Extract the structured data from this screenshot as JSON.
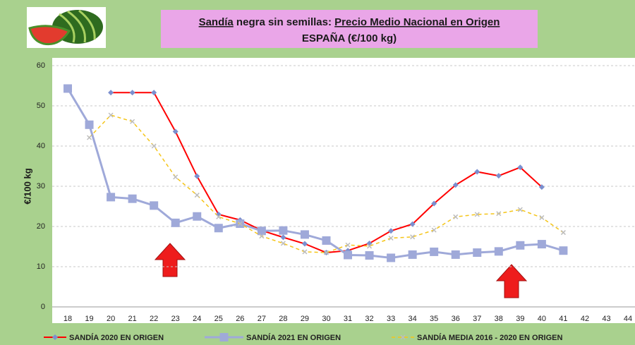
{
  "chart_data": {
    "type": "line",
    "title_parts": [
      "Sandía",
      " negra sin semillas: ",
      "Precio Medio Nacional en Origen"
    ],
    "subtitle": "ESPAÑA (€/100 kg)",
    "y_label": "€/100 kg",
    "categories": [
      "18",
      "19",
      "20",
      "21",
      "22",
      "23",
      "24",
      "25",
      "26",
      "27",
      "28",
      "29",
      "30",
      "31",
      "32",
      "33",
      "34",
      "35",
      "36",
      "37",
      "38",
      "39",
      "40",
      "41",
      "42",
      "43",
      "44"
    ],
    "series": [
      {
        "name": "SANDÍA 2020 EN ORIGEN",
        "color": "#ff0000",
        "marker": "diamond",
        "values": [
          null,
          null,
          53.3,
          53.3,
          53.3,
          43.6,
          32.5,
          23.0,
          21.6,
          19.0,
          17.3,
          15.7,
          13.5,
          14.0,
          15.8,
          18.9,
          20.6,
          25.7,
          30.3,
          33.6,
          32.6,
          34.7,
          29.8,
          null,
          null,
          null,
          null
        ]
      },
      {
        "name": "SANDÍA 2021 EN ORIGEN",
        "color": "#9fa9d9",
        "marker": "square",
        "values": [
          54.3,
          45.3,
          27.3,
          26.9,
          25.2,
          20.9,
          22.5,
          19.6,
          20.7,
          18.9,
          19.0,
          18.0,
          16.5,
          12.9,
          12.8,
          12.2,
          13.0,
          13.7,
          13.0,
          13.5,
          13.8,
          15.3,
          15.6,
          14.0,
          null,
          null,
          null
        ]
      },
      {
        "name": "SANDÍA MEDIA 2016 - 2020 EN ORIGEN",
        "color": "#f5c518",
        "marker": "x",
        "values": [
          null,
          42.1,
          47.7,
          46.1,
          40.0,
          32.3,
          27.8,
          22.4,
          20.7,
          17.6,
          15.8,
          13.7,
          13.5,
          15.4,
          15.1,
          17.1,
          17.4,
          19.1,
          22.4,
          23.0,
          23.2,
          24.2,
          22.2,
          18.5,
          null,
          null,
          null
        ]
      }
    ],
    "ylim": [
      0,
      60
    ],
    "yticks": [
      0,
      10,
      20,
      30,
      40,
      50,
      60
    ],
    "grid": true
  }
}
